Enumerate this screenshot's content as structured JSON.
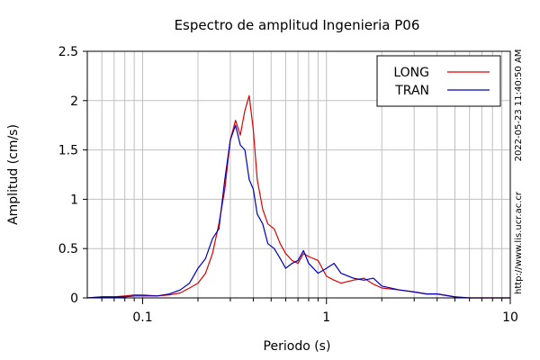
{
  "chart_data": {
    "type": "line",
    "title": "Espectro de amplitud Ingenieria P06",
    "xlabel": "Periodo (s)",
    "ylabel": "Amplitud (cm/s)",
    "x_scale": "log",
    "xlim": [
      0.05,
      10
    ],
    "ylim": [
      0,
      2.5
    ],
    "x_tick_labels": [
      "0.1",
      "1",
      "10"
    ],
    "x_tick_values": [
      0.1,
      1,
      10
    ],
    "y_tick_labels": [
      "0",
      "0.5",
      "1",
      "1.5",
      "2",
      "2.5"
    ],
    "y_tick_values": [
      0,
      0.5,
      1,
      1.5,
      2,
      2.5
    ],
    "grid": true,
    "legend_position": "top-right",
    "side_text": [
      "2022-05-23 11:40:50 AM",
      "http://www.lis.ucr.ac.cr"
    ],
    "series": [
      {
        "name": "LONG",
        "color": "#dd0000",
        "x": [
          0.05,
          0.06,
          0.07,
          0.08,
          0.09,
          0.1,
          0.12,
          0.14,
          0.16,
          0.18,
          0.2,
          0.22,
          0.24,
          0.26,
          0.28,
          0.3,
          0.32,
          0.34,
          0.36,
          0.38,
          0.4,
          0.42,
          0.45,
          0.48,
          0.52,
          0.56,
          0.6,
          0.65,
          0.7,
          0.75,
          0.8,
          0.9,
          1.0,
          1.1,
          1.2,
          1.4,
          1.6,
          1.8,
          2.0,
          2.5,
          3.0,
          3.5,
          4.0,
          5.0,
          6.0,
          8.0,
          10.0
        ],
        "y": [
          0.0,
          0.01,
          0.01,
          0.02,
          0.03,
          0.03,
          0.02,
          0.03,
          0.05,
          0.1,
          0.15,
          0.25,
          0.45,
          0.75,
          1.1,
          1.6,
          1.8,
          1.65,
          1.9,
          2.05,
          1.7,
          1.2,
          0.9,
          0.75,
          0.7,
          0.55,
          0.45,
          0.38,
          0.35,
          0.45,
          0.42,
          0.38,
          0.22,
          0.18,
          0.15,
          0.18,
          0.2,
          0.14,
          0.1,
          0.08,
          0.06,
          0.04,
          0.04,
          0.01,
          0.0,
          0.0,
          0.0
        ]
      },
      {
        "name": "TRAN",
        "color": "#0000bb",
        "x": [
          0.05,
          0.06,
          0.07,
          0.08,
          0.09,
          0.1,
          0.12,
          0.14,
          0.16,
          0.18,
          0.2,
          0.22,
          0.24,
          0.26,
          0.28,
          0.3,
          0.32,
          0.34,
          0.36,
          0.38,
          0.4,
          0.42,
          0.45,
          0.48,
          0.52,
          0.56,
          0.6,
          0.65,
          0.7,
          0.75,
          0.8,
          0.9,
          1.0,
          1.1,
          1.2,
          1.4,
          1.6,
          1.8,
          2.0,
          2.5,
          3.0,
          3.5,
          4.0,
          5.0,
          6.0,
          8.0,
          10.0
        ],
        "y": [
          0.0,
          0.01,
          0.01,
          0.01,
          0.02,
          0.02,
          0.02,
          0.04,
          0.08,
          0.15,
          0.3,
          0.4,
          0.6,
          0.7,
          1.2,
          1.6,
          1.75,
          1.55,
          1.5,
          1.2,
          1.1,
          0.85,
          0.75,
          0.55,
          0.5,
          0.4,
          0.3,
          0.35,
          0.38,
          0.48,
          0.35,
          0.25,
          0.3,
          0.35,
          0.25,
          0.2,
          0.18,
          0.2,
          0.12,
          0.08,
          0.06,
          0.04,
          0.04,
          0.01,
          0.0,
          0.0,
          0.0
        ]
      }
    ]
  }
}
